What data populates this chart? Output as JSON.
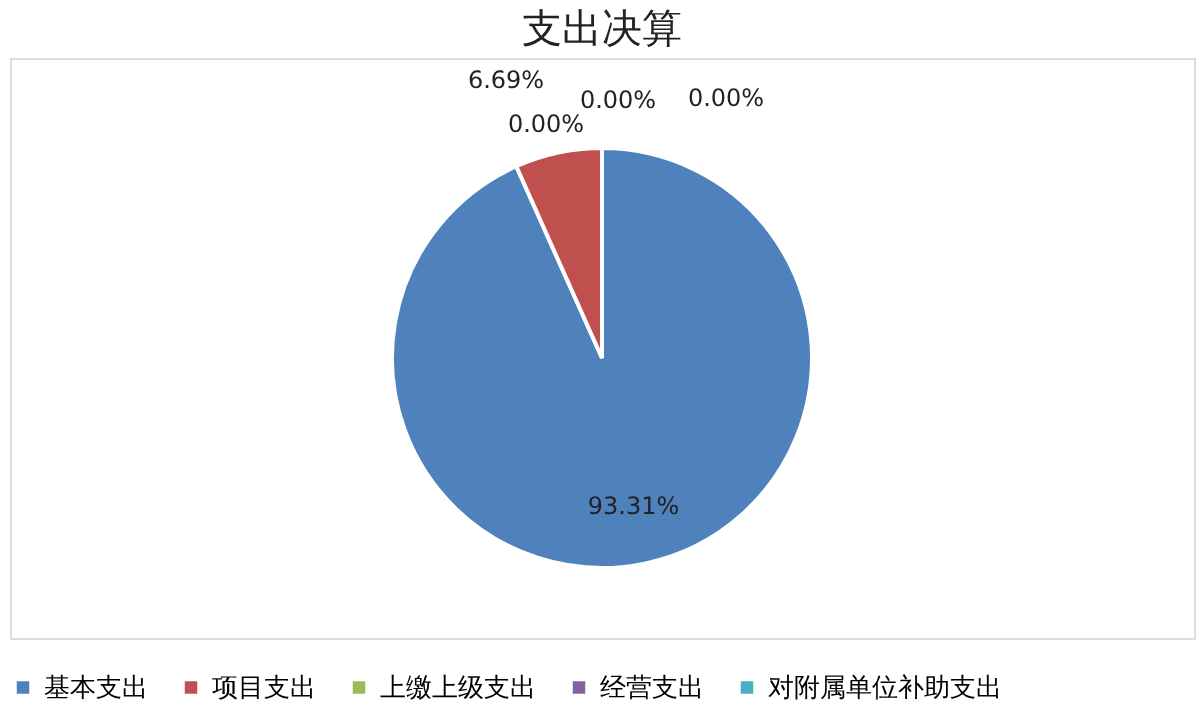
{
  "chart_data": {
    "type": "pie",
    "title": "支出决算",
    "categories": [
      "基本支出",
      "项目支出",
      "上缴上级支出",
      "经营支出",
      "对附属单位补助支出"
    ],
    "values": [
      93.31,
      6.69,
      0.0,
      0.0,
      0.0
    ],
    "colors": [
      "#4f81bd",
      "#c0504d",
      "#9bbb59",
      "#8064a2",
      "#4bacc6"
    ],
    "value_labels": [
      "93.31%",
      "6.69%",
      "0.00%",
      "0.00%",
      "0.00%"
    ],
    "legend": "bottom"
  }
}
